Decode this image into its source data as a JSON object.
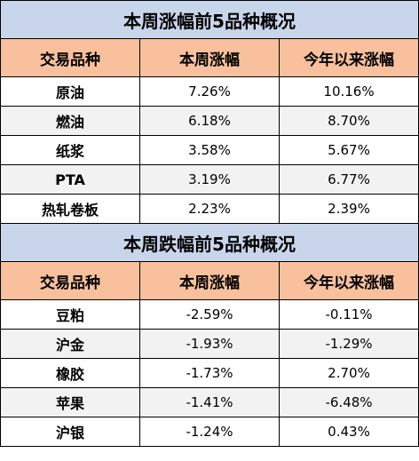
{
  "top": {
    "title": "本周涨幅前5品种概况",
    "headers": [
      "交易品种",
      "本周涨幅",
      "今年以来涨幅"
    ],
    "rows": [
      {
        "name": "原油",
        "week": "7.26%",
        "ytd": "10.16%"
      },
      {
        "name": "燃油",
        "week": "6.18%",
        "ytd": "8.70%"
      },
      {
        "name": "纸浆",
        "week": "3.58%",
        "ytd": "5.67%"
      },
      {
        "name": "PTA",
        "week": "3.19%",
        "ytd": "6.77%"
      },
      {
        "name": "热轧卷板",
        "week": "2.23%",
        "ytd": "2.39%"
      }
    ]
  },
  "bottom": {
    "title": "本周跌幅前5品种概况",
    "headers": [
      "交易品种",
      "本周涨幅",
      "今年以来涨幅"
    ],
    "rows": [
      {
        "name": "豆粕",
        "week": "-2.59%",
        "ytd": "-0.11%"
      },
      {
        "name": "沪金",
        "week": "-1.93%",
        "ytd": "-1.29%"
      },
      {
        "name": "橡胶",
        "week": "-1.73%",
        "ytd": "2.70%"
      },
      {
        "name": "苹果",
        "week": "-1.41%",
        "ytd": "-6.48%"
      },
      {
        "name": "沪银",
        "week": "-1.24%",
        "ytd": "0.43%"
      }
    ]
  },
  "colors": {
    "title_bg": "#c9d5ea",
    "header_bg": "#f8c09c",
    "alt_row_bg": "#f2f2f2"
  }
}
